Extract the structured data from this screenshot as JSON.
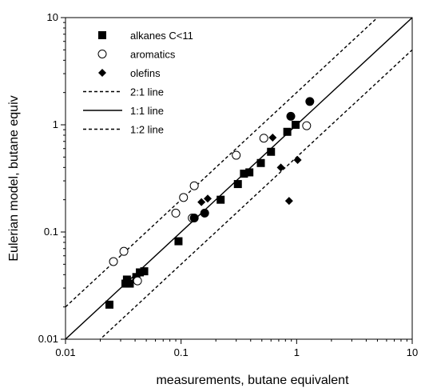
{
  "chart_data": {
    "type": "scatter",
    "xscale": "log",
    "yscale": "log",
    "xlim": [
      0.01,
      10
    ],
    "ylim": [
      0.01,
      10
    ],
    "xlabel": "measurements, butane equivalent",
    "ylabel": "Eulerian model, butane equiv",
    "x_ticks": [
      "0.01",
      "0.1",
      "1",
      "10"
    ],
    "y_ticks": [
      "0.01",
      "0.1",
      "1",
      "10"
    ],
    "grid": false,
    "legend_position": "top-left",
    "series": [
      {
        "name": "alkanes C<11",
        "marker": "filled-square",
        "points": [
          [
            0.024,
            0.021
          ],
          [
            0.033,
            0.033
          ],
          [
            0.034,
            0.036
          ],
          [
            0.036,
            0.033
          ],
          [
            0.041,
            0.038
          ],
          [
            0.044,
            0.042
          ],
          [
            0.048,
            0.043
          ],
          [
            0.095,
            0.082
          ],
          [
            0.22,
            0.2
          ],
          [
            0.31,
            0.28
          ],
          [
            0.35,
            0.35
          ],
          [
            0.39,
            0.36
          ],
          [
            0.49,
            0.44
          ],
          [
            0.6,
            0.56
          ],
          [
            0.83,
            0.86
          ],
          [
            0.98,
            1.0
          ]
        ]
      },
      {
        "name": "aromatics",
        "marker": "open-circle",
        "points": [
          [
            0.026,
            0.053
          ],
          [
            0.032,
            0.066
          ],
          [
            0.042,
            0.035
          ],
          [
            0.09,
            0.15
          ],
          [
            0.105,
            0.21
          ],
          [
            0.125,
            0.135
          ],
          [
            0.13,
            0.27
          ],
          [
            0.3,
            0.52
          ],
          [
            0.52,
            0.75
          ],
          [
            1.22,
            0.98
          ]
        ]
      },
      {
        "name": "olefins",
        "marker": "filled-diamond",
        "points": [
          [
            0.15,
            0.19
          ],
          [
            0.17,
            0.205
          ],
          [
            0.62,
            0.76
          ],
          [
            0.73,
            0.4
          ],
          [
            0.86,
            0.195
          ],
          [
            1.02,
            0.47
          ]
        ]
      },
      {
        "name": "",
        "marker": "filled-circle",
        "points": [
          [
            0.13,
            0.135
          ],
          [
            0.16,
            0.15
          ],
          [
            0.89,
            1.2
          ],
          [
            1.3,
            1.65
          ]
        ]
      }
    ],
    "reference_lines": [
      {
        "name": "2:1 line",
        "style": "dashed",
        "ratio": 2
      },
      {
        "name": "1:1 line",
        "style": "solid",
        "ratio": 1
      },
      {
        "name": "1:2 line",
        "style": "dashed",
        "ratio": 0.5
      }
    ]
  }
}
